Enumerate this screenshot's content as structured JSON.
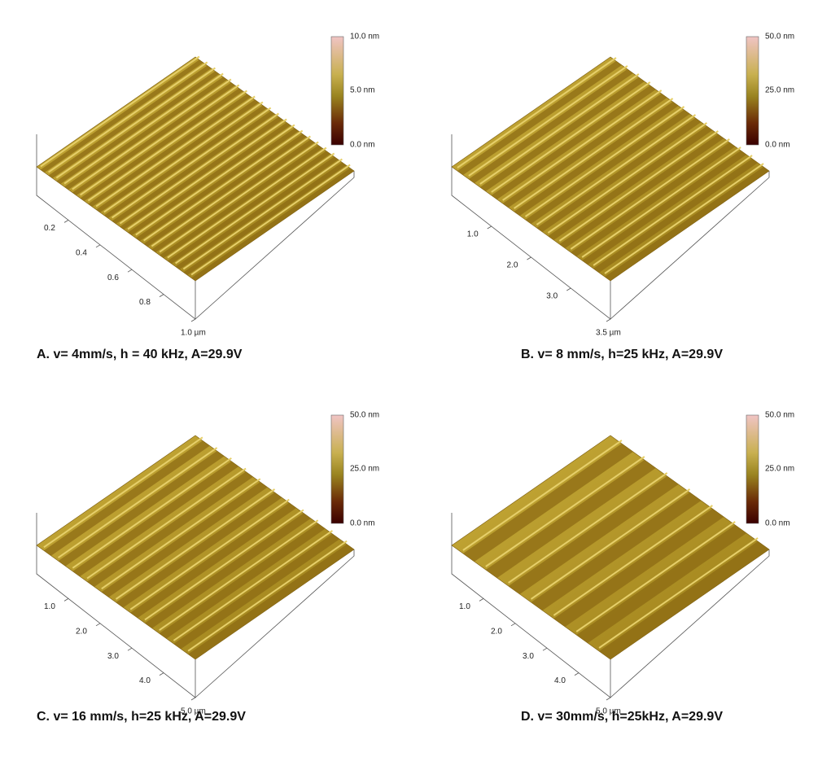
{
  "panels": [
    {
      "caption": "A. v= 4mm/s, h = 40 kHz, A=29.9V",
      "colorbar": [
        "10.0 nm",
        "5.0 nm",
        "0.0 nm"
      ],
      "axis_labels": [
        "0.2",
        "0.4",
        "0.6",
        "0.8",
        "1.0 µm"
      ]
    },
    {
      "caption": "B. v= 8 mm/s, h=25 kHz, A=29.9V",
      "colorbar": [
        "50.0 nm",
        "25.0 nm",
        "0.0 nm"
      ],
      "axis_labels": [
        "1.0",
        "2.0",
        "3.0",
        "3.5 µm"
      ]
    },
    {
      "caption": "C. v= 16 mm/s, h=25 kHz, A=29.9V",
      "colorbar": [
        "50.0 nm",
        "25.0 nm",
        "0.0 nm"
      ],
      "axis_labels": [
        "1.0",
        "2.0",
        "3.0",
        "4.0",
        "5.0 µm"
      ]
    },
    {
      "caption": "D. v= 30mm/s, h=25kHz, A=29.9V",
      "colorbar": [
        "50.0 nm",
        "25.0 nm",
        "0.0 nm"
      ],
      "axis_labels": [
        "1.0",
        "2.0",
        "3.0",
        "4.0",
        "5.0 µm"
      ]
    }
  ]
}
